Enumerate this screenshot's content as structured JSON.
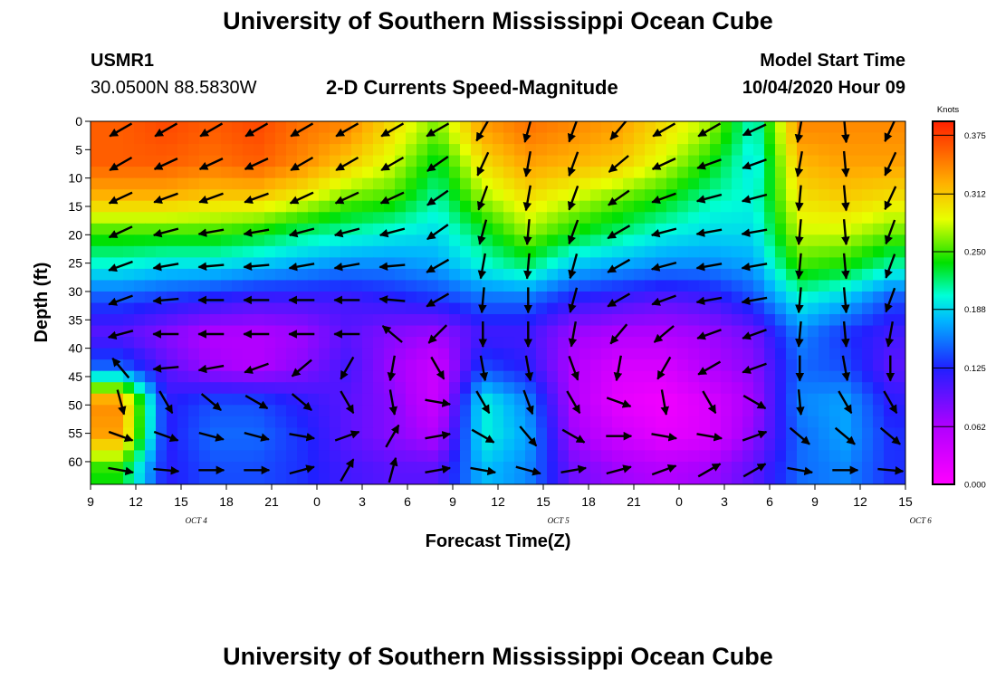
{
  "header": {
    "title": "University of Southern Mississippi Ocean Cube",
    "station_id": "USMR1",
    "station_coords": "30.0500N 88.5830W",
    "subtitle": "2-D Currents Speed-Magnitude",
    "model_start_label": "Model Start Time",
    "model_start_value": "10/04/2020 Hour 09"
  },
  "footer": {
    "title": "University of Southern Mississippi Ocean Cube"
  },
  "chart_data": {
    "type": "heatmap",
    "xlabel": "Forecast Time(Z)",
    "ylabel": "Depth (ft)",
    "x_ticks": [
      "9",
      "12",
      "15",
      "18",
      "21",
      "0",
      "3",
      "6",
      "9",
      "12",
      "15",
      "18",
      "21",
      "0",
      "3",
      "6",
      "9",
      "12",
      "15"
    ],
    "x_day_labels": [
      {
        "label": "OCT 4",
        "at_hour": 16
      },
      {
        "label": "OCT 5",
        "at_hour": 40
      },
      {
        "label": "OCT 6",
        "at_hour": 64
      }
    ],
    "x_range_hours_from_start": [
      0,
      54
    ],
    "y_ticks": [
      "0",
      "5",
      "10",
      "15",
      "20",
      "25",
      "30",
      "35",
      "40",
      "45",
      "50",
      "55",
      "60"
    ],
    "ylim_ft": [
      0,
      64
    ],
    "y_inverted": true,
    "colorbar": {
      "title": "Knots",
      "ticks": [
        "0.375",
        "0.312",
        "0.250",
        "0.188",
        "0.125",
        "0.062",
        "0.000"
      ],
      "range": [
        0,
        0.39
      ]
    },
    "vector_columns_hours": [
      2,
      5,
      8,
      11,
      14,
      17,
      20,
      23,
      26,
      29,
      32,
      35,
      38,
      41,
      44,
      47,
      50,
      53
    ],
    "vector_rows_ft": [
      1.5,
      7.5,
      13.5,
      19.5,
      25.5,
      31.5,
      37.5,
      43.5,
      49.5,
      55.5,
      61.5
    ],
    "speed_field_knots": [
      [
        0.36,
        0.37,
        0.36,
        0.37,
        0.35,
        0.34,
        0.3,
        0.26,
        0.33,
        0.35,
        0.34,
        0.33,
        0.3,
        0.27,
        0.2,
        0.34,
        0.34,
        0.34
      ],
      [
        0.36,
        0.36,
        0.35,
        0.36,
        0.34,
        0.31,
        0.28,
        0.23,
        0.3,
        0.33,
        0.32,
        0.31,
        0.28,
        0.24,
        0.19,
        0.32,
        0.33,
        0.33
      ],
      [
        0.32,
        0.32,
        0.31,
        0.31,
        0.29,
        0.26,
        0.25,
        0.21,
        0.27,
        0.3,
        0.28,
        0.26,
        0.24,
        0.21,
        0.2,
        0.3,
        0.31,
        0.3
      ],
      [
        0.25,
        0.25,
        0.25,
        0.24,
        0.22,
        0.21,
        0.2,
        0.19,
        0.23,
        0.27,
        0.24,
        0.22,
        0.2,
        0.19,
        0.19,
        0.28,
        0.28,
        0.26
      ],
      [
        0.2,
        0.19,
        0.19,
        0.18,
        0.17,
        0.16,
        0.16,
        0.17,
        0.2,
        0.22,
        0.18,
        0.17,
        0.16,
        0.16,
        0.17,
        0.25,
        0.24,
        0.21
      ],
      [
        0.14,
        0.13,
        0.12,
        0.11,
        0.11,
        0.11,
        0.12,
        0.13,
        0.15,
        0.15,
        0.12,
        0.11,
        0.1,
        0.11,
        0.14,
        0.2,
        0.18,
        0.14
      ],
      [
        0.1,
        0.08,
        0.06,
        0.06,
        0.07,
        0.1,
        0.08,
        0.07,
        0.11,
        0.11,
        0.07,
        0.06,
        0.06,
        0.07,
        0.09,
        0.16,
        0.13,
        0.11
      ],
      [
        0.15,
        0.1,
        0.07,
        0.06,
        0.08,
        0.11,
        0.07,
        0.04,
        0.14,
        0.12,
        0.06,
        0.03,
        0.03,
        0.06,
        0.08,
        0.15,
        0.14,
        0.1
      ],
      [
        0.34,
        0.12,
        0.14,
        0.14,
        0.12,
        0.1,
        0.08,
        0.04,
        0.2,
        0.16,
        0.06,
        0.02,
        0.01,
        0.03,
        0.07,
        0.16,
        0.17,
        0.12
      ],
      [
        0.33,
        0.12,
        0.15,
        0.15,
        0.13,
        0.1,
        0.08,
        0.06,
        0.2,
        0.17,
        0.07,
        0.04,
        0.02,
        0.03,
        0.08,
        0.15,
        0.17,
        0.13
      ],
      [
        0.24,
        0.12,
        0.14,
        0.14,
        0.13,
        0.11,
        0.1,
        0.1,
        0.18,
        0.16,
        0.09,
        0.07,
        0.06,
        0.07,
        0.1,
        0.15,
        0.16,
        0.13
      ]
    ],
    "vector_direction_deg": [
      [
        -150,
        -150,
        -150,
        -150,
        -150,
        -150,
        -150,
        -150,
        -120,
        -105,
        -110,
        -130,
        -150,
        -150,
        -155,
        -100,
        -85,
        -115
      ],
      [
        -150,
        -155,
        -155,
        -155,
        -150,
        -150,
        -150,
        -145,
        -115,
        -100,
        -110,
        -140,
        -155,
        -160,
        -160,
        -100,
        -85,
        -115
      ],
      [
        -155,
        -160,
        -160,
        -160,
        -155,
        -155,
        -155,
        -145,
        -110,
        -100,
        -110,
        -145,
        -160,
        -165,
        -165,
        -95,
        -85,
        -115
      ],
      [
        -155,
        -165,
        -170,
        -170,
        -165,
        -165,
        -165,
        -145,
        -105,
        -95,
        -110,
        -150,
        -165,
        -170,
        -170,
        -95,
        -85,
        -110
      ],
      [
        -160,
        -170,
        -175,
        -175,
        -170,
        -170,
        -175,
        -150,
        -100,
        -95,
        -105,
        -150,
        -165,
        -170,
        -170,
        -95,
        -85,
        -110
      ],
      [
        -160,
        -175,
        -180,
        -180,
        -180,
        180,
        175,
        -150,
        -95,
        -90,
        -105,
        -150,
        -160,
        -170,
        -170,
        -95,
        -85,
        -110
      ],
      [
        -165,
        -180,
        -180,
        180,
        180,
        180,
        140,
        -135,
        -90,
        -90,
        -100,
        -130,
        -140,
        -160,
        -160,
        -95,
        -85,
        -100
      ],
      [
        130,
        -175,
        -170,
        -160,
        -140,
        -120,
        -100,
        -60,
        -80,
        -80,
        -70,
        -100,
        -120,
        -150,
        -160,
        -90,
        -80,
        -90
      ],
      [
        -75,
        -60,
        -40,
        -30,
        -40,
        -60,
        -80,
        -10,
        -60,
        -70,
        -60,
        -20,
        -80,
        -60,
        -30,
        -85,
        -60,
        -60
      ],
      [
        -20,
        -20,
        -15,
        -15,
        -10,
        20,
        60,
        10,
        -30,
        -50,
        -30,
        0,
        -10,
        -10,
        20,
        -40,
        -40,
        -40
      ],
      [
        -10,
        -5,
        0,
        0,
        15,
        60,
        75,
        10,
        -10,
        -15,
        10,
        15,
        20,
        30,
        30,
        -10,
        0,
        -5
      ]
    ]
  }
}
